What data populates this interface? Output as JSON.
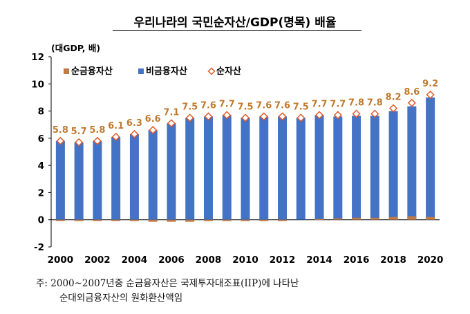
{
  "title": "우리나라의 국민순자산/GDP(명목) 배율",
  "chart_data": {
    "type": "bar",
    "unit_label": "(대GDP, 배)",
    "legend_position": "top-left",
    "ylim": [
      -2,
      12
    ],
    "yticks": [
      -2,
      0,
      2,
      4,
      6,
      8,
      10,
      12
    ],
    "categories": [
      "2000",
      "2001",
      "2002",
      "2003",
      "2004",
      "2005",
      "2006",
      "2007",
      "2008",
      "2009",
      "2010",
      "2011",
      "2012",
      "2013",
      "2014",
      "2015",
      "2016",
      "2017",
      "2018",
      "2019",
      "2020"
    ],
    "x_tick_labels": [
      "2000",
      "2002",
      "2004",
      "2006",
      "2008",
      "2010",
      "2012",
      "2014",
      "2016",
      "2018",
      "2020"
    ],
    "series": [
      {
        "name": "순금융자산",
        "type": "bar",
        "color": "#C07A45",
        "values": [
          -0.1,
          -0.1,
          -0.1,
          -0.1,
          -0.1,
          -0.15,
          -0.15,
          -0.15,
          -0.1,
          -0.1,
          -0.1,
          -0.1,
          -0.1,
          0.0,
          0.05,
          0.1,
          0.15,
          0.15,
          0.2,
          0.25,
          0.2
        ]
      },
      {
        "name": "비금융자산",
        "type": "bar",
        "color": "#4472C4",
        "values": [
          5.8,
          5.7,
          5.8,
          6.1,
          6.3,
          6.6,
          7.1,
          7.5,
          7.6,
          7.7,
          7.5,
          7.6,
          7.6,
          7.5,
          7.7,
          7.6,
          7.65,
          7.65,
          8.0,
          8.35,
          9.0
        ]
      },
      {
        "name": "순자산",
        "type": "marker",
        "color": "#E05A2A",
        "values": [
          5.8,
          5.7,
          5.8,
          6.1,
          6.3,
          6.6,
          7.1,
          7.5,
          7.6,
          7.7,
          7.5,
          7.6,
          7.6,
          7.5,
          7.7,
          7.7,
          7.8,
          7.8,
          8.2,
          8.6,
          9.2
        ]
      }
    ],
    "data_labels": [
      "5.8",
      "5.7",
      "5.8",
      "6.1",
      "6.3",
      "6.6",
      "7.1",
      "7.5",
      "7.6",
      "7.7",
      "7.5",
      "7.6",
      "7.6",
      "7.5",
      "7.7",
      "7.7",
      "7.8",
      "7.8",
      "8.2",
      "8.6",
      "9.2"
    ],
    "data_label_color": "#C0792E",
    "grid": false
  },
  "note": {
    "line1": "주: 2000~2007년중 순금융자산은 국제투자대조표(IIP)에 나타난",
    "line2": "순대외금융자산의 원화환산액임"
  }
}
